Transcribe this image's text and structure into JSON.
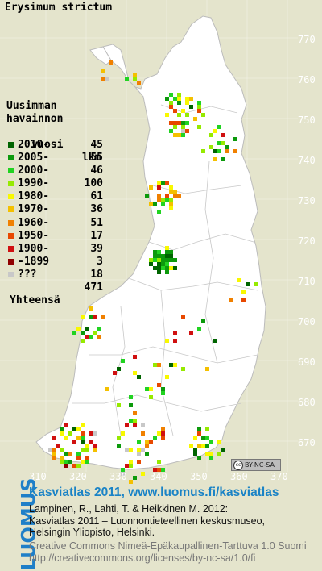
{
  "title": "Erysimum strictum",
  "legend": {
    "heading1": "Uusimman",
    "heading2": "havainnon",
    "heading3_left": "vuosi",
    "heading3_right": "lkm",
    "rows": [
      {
        "label": "2010-",
        "count": "45",
        "color": "#006400"
      },
      {
        "label": "2005-",
        "count": "55",
        "color": "#0c9a0c"
      },
      {
        "label": "2000-",
        "count": "46",
        "color": "#21d321"
      },
      {
        "label": "1990-",
        "count": "100",
        "color": "#96ea00"
      },
      {
        "label": "1980-",
        "count": "61",
        "color": "#f8f800"
      },
      {
        "label": "1970-",
        "count": "36",
        "color": "#f4c000"
      },
      {
        "label": "1960-",
        "count": "51",
        "color": "#f08000"
      },
      {
        "label": "1950-",
        "count": "17",
        "color": "#e84800"
      },
      {
        "label": "1900-",
        "count": "39",
        "color": "#d01010"
      },
      {
        "label": "-1899",
        "count": "3",
        "color": "#900000"
      },
      {
        "label": "???",
        "count": "18",
        "color": "#c8c8c8"
      }
    ],
    "total_label": "Yhteensä",
    "total_count": "471"
  },
  "y_ticks": [
    "770",
    "760",
    "750",
    "740",
    "730",
    "720",
    "710",
    "700",
    "690",
    "680",
    "670"
  ],
  "x_ticks": [
    "310",
    "320",
    "330",
    "340",
    "350",
    "360",
    "370"
  ],
  "cc_badge": "BY-NC-SA",
  "footer": {
    "brand": "LUOMUS",
    "line1": "Kasviatlas 2011, www.luomus.fi/kasviatlas",
    "line2": "Lampinen, R., Lahti, T. & Heikkinen M. 2012:",
    "line3": "Kasviatlas 2011 – Luonnontieteellinen keskusmuseo,",
    "line4": "Helsingin Yliopisto, Helsinki.",
    "line5": "Creative Commons Nimeä-Epäkaupallinen-Tarttuva 1.0 Suomi",
    "line6": "http://creativecommons.org/licenses/by-nc-sa/1.0/fi"
  }
}
